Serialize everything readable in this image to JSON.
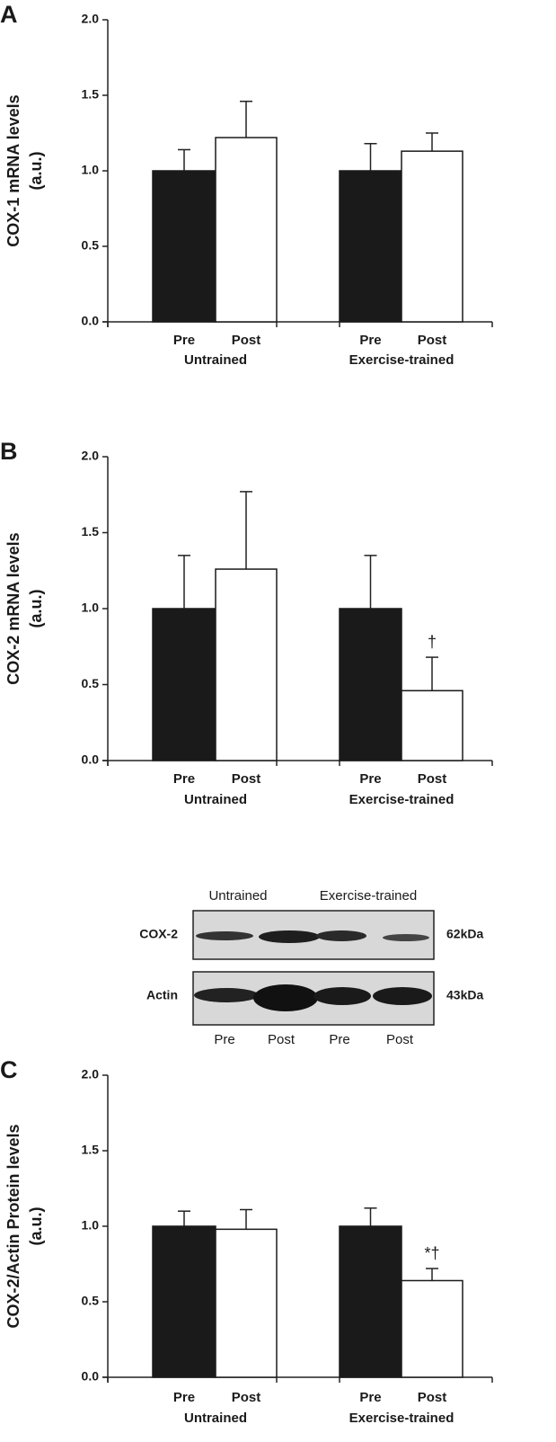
{
  "chart_data": [
    {
      "type": "bar",
      "panel": "A",
      "ylabel": [
        "COX-1 mRNA levels",
        "(a.u.)"
      ],
      "categories": [
        "Pre",
        "Post",
        "Pre",
        "Post"
      ],
      "groups": [
        "Untrained",
        "Exercise-trained"
      ],
      "values": [
        1.0,
        1.22,
        1.0,
        1.13
      ],
      "errors": [
        0.14,
        0.24,
        0.18,
        0.12
      ],
      "colors": [
        "#1a1a1a",
        "#ffffff",
        "#1a1a1a",
        "#ffffff"
      ],
      "ylim": [
        0,
        2
      ],
      "yticks": [
        {
          "value": 0,
          "label": "0.0"
        },
        {
          "value": 0.5,
          "label": "0.5"
        },
        {
          "value": 1,
          "label": "1.0"
        },
        {
          "value": 1.5,
          "label": "1.5"
        },
        {
          "value": 2,
          "label": "2.0"
        }
      ]
    },
    {
      "type": "bar",
      "panel": "B",
      "ylabel": [
        "COX-2 mRNA levels",
        "(a.u.)"
      ],
      "categories": [
        "Pre",
        "Post",
        "Pre",
        "Post"
      ],
      "groups": [
        "Untrained",
        "Exercise-trained"
      ],
      "values": [
        1.0,
        1.26,
        1.0,
        0.46
      ],
      "errors": [
        0.35,
        0.51,
        0.35,
        0.22
      ],
      "colors": [
        "#1a1a1a",
        "#ffffff",
        "#1a1a1a",
        "#ffffff"
      ],
      "annotations": [
        null,
        null,
        null,
        "†"
      ],
      "ylim": [
        0,
        2
      ],
      "yticks": [
        {
          "value": 0,
          "label": "0.0"
        },
        {
          "value": 0.5,
          "label": "0.5"
        },
        {
          "value": 1,
          "label": "1.0"
        },
        {
          "value": 1.5,
          "label": "1.5"
        },
        {
          "value": 2,
          "label": "2.0"
        }
      ]
    },
    {
      "type": "bar",
      "panel": "C",
      "ylabel": [
        "COX-2/Actin Protein levels",
        "(a.u.)"
      ],
      "categories": [
        "Pre",
        "Post",
        "Pre",
        "Post"
      ],
      "groups": [
        "Untrained",
        "Exercise-trained"
      ],
      "values": [
        1.0,
        0.98,
        1.0,
        0.64
      ],
      "errors": [
        0.1,
        0.13,
        0.12,
        0.08
      ],
      "colors": [
        "#1a1a1a",
        "#ffffff",
        "#1a1a1a",
        "#ffffff"
      ],
      "annotations": [
        null,
        null,
        null,
        "*†"
      ],
      "ylim": [
        0,
        2
      ],
      "yticks": [
        {
          "value": 0,
          "label": "0.0"
        },
        {
          "value": 0.5,
          "label": "0.5"
        },
        {
          "value": 1,
          "label": "1.0"
        },
        {
          "value": 1.5,
          "label": "1.5"
        },
        {
          "value": 2,
          "label": "2.0"
        }
      ],
      "inset": {
        "groups": [
          "Untrained",
          "Exercise-trained"
        ],
        "rows": [
          "COX-2",
          "Actin"
        ],
        "sizes": [
          "62kDa",
          "43kDa"
        ],
        "lanes": [
          "Pre",
          "Post",
          "Pre",
          "Post"
        ]
      }
    }
  ]
}
